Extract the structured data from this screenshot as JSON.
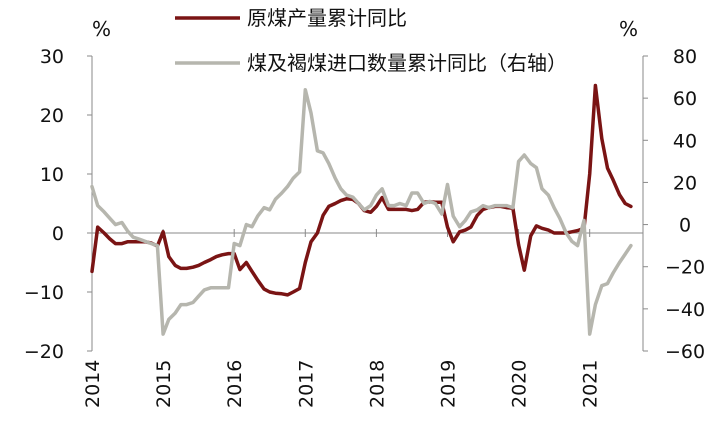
{
  "chart_data": {
    "type": "line",
    "x_ticks": [
      "2014",
      "2015",
      "2016",
      "2017",
      "2018",
      "2019",
      "2020",
      "2021"
    ],
    "y_left": {
      "unit": "%",
      "ylim": [
        -20,
        30
      ],
      "ticks": [
        "30",
        "20",
        "10",
        "0",
        "−10",
        "−20"
      ]
    },
    "y_right": {
      "unit": "%",
      "ylim": [
        -60,
        80
      ],
      "ticks": [
        "80",
        "60",
        "40",
        "20",
        "0",
        "−20",
        "−40",
        "−60"
      ]
    },
    "legend_placement": "top-center",
    "series": [
      {
        "name": "原煤产量累计同比",
        "axis": "left",
        "color": "#7a1414",
        "points": [
          [
            2014.0,
            -6.5
          ],
          [
            2014.08,
            1.0
          ],
          [
            2014.17,
            0.0
          ],
          [
            2014.25,
            -1.0
          ],
          [
            2014.33,
            -1.8
          ],
          [
            2014.42,
            -1.8
          ],
          [
            2014.5,
            -1.5
          ],
          [
            2014.58,
            -1.5
          ],
          [
            2014.67,
            -1.5
          ],
          [
            2014.75,
            -1.5
          ],
          [
            2014.83,
            -1.7
          ],
          [
            2014.92,
            -2.2
          ],
          [
            2015.0,
            0.2
          ],
          [
            2015.08,
            -4.0
          ],
          [
            2015.17,
            -5.5
          ],
          [
            2015.25,
            -6.0
          ],
          [
            2015.33,
            -6.0
          ],
          [
            2015.42,
            -5.8
          ],
          [
            2015.5,
            -5.5
          ],
          [
            2015.58,
            -5.0
          ],
          [
            2015.67,
            -4.5
          ],
          [
            2015.75,
            -4.0
          ],
          [
            2015.83,
            -3.7
          ],
          [
            2015.92,
            -3.5
          ],
          [
            2016.0,
            -3.5
          ],
          [
            2016.08,
            -6.2
          ],
          [
            2016.17,
            -5.0
          ],
          [
            2016.25,
            -6.5
          ],
          [
            2016.33,
            -8.0
          ],
          [
            2016.42,
            -9.5
          ],
          [
            2016.5,
            -10.0
          ],
          [
            2016.58,
            -10.2
          ],
          [
            2016.67,
            -10.3
          ],
          [
            2016.75,
            -10.5
          ],
          [
            2016.83,
            -10.0
          ],
          [
            2016.92,
            -9.4
          ],
          [
            2017.0,
            -5.0
          ],
          [
            2017.08,
            -1.5
          ],
          [
            2017.17,
            0.0
          ],
          [
            2017.25,
            3.0
          ],
          [
            2017.33,
            4.5
          ],
          [
            2017.42,
            5.0
          ],
          [
            2017.5,
            5.5
          ],
          [
            2017.58,
            5.8
          ],
          [
            2017.67,
            5.7
          ],
          [
            2017.75,
            5.0
          ],
          [
            2017.83,
            3.8
          ],
          [
            2017.92,
            3.5
          ],
          [
            2018.0,
            4.5
          ],
          [
            2018.08,
            6.0
          ],
          [
            2018.17,
            4.0
          ],
          [
            2018.25,
            4.0
          ],
          [
            2018.33,
            4.0
          ],
          [
            2018.42,
            4.0
          ],
          [
            2018.5,
            3.8
          ],
          [
            2018.58,
            4.0
          ],
          [
            2018.67,
            5.2
          ],
          [
            2018.75,
            5.3
          ],
          [
            2018.83,
            5.2
          ],
          [
            2018.92,
            5.2
          ],
          [
            2019.0,
            1.0
          ],
          [
            2019.08,
            -1.5
          ],
          [
            2019.17,
            0.2
          ],
          [
            2019.25,
            0.5
          ],
          [
            2019.33,
            1.0
          ],
          [
            2019.42,
            3.0
          ],
          [
            2019.5,
            4.0
          ],
          [
            2019.58,
            4.3
          ],
          [
            2019.67,
            4.5
          ],
          [
            2019.75,
            4.5
          ],
          [
            2019.83,
            4.3
          ],
          [
            2019.92,
            4.2
          ],
          [
            2020.0,
            -2.0
          ],
          [
            2020.08,
            -6.3
          ],
          [
            2020.17,
            -0.5
          ],
          [
            2020.25,
            1.2
          ],
          [
            2020.33,
            0.8
          ],
          [
            2020.42,
            0.5
          ],
          [
            2020.5,
            0.0
          ],
          [
            2020.58,
            0.0
          ],
          [
            2020.67,
            0.0
          ],
          [
            2020.75,
            0.2
          ],
          [
            2020.83,
            0.4
          ],
          [
            2020.92,
            0.8
          ],
          [
            2021.0,
            10.0
          ],
          [
            2021.08,
            25.0
          ],
          [
            2021.17,
            16.0
          ],
          [
            2021.25,
            11.0
          ],
          [
            2021.33,
            9.0
          ],
          [
            2021.42,
            6.5
          ],
          [
            2021.5,
            5.0
          ],
          [
            2021.58,
            4.5
          ]
        ]
      },
      {
        "name": "煤及褐煤进口数量累计同比（右轴）",
        "axis": "right",
        "color": "#b6b6ae",
        "points": [
          [
            2014.0,
            18.0
          ],
          [
            2014.08,
            9.0
          ],
          [
            2014.17,
            6.0
          ],
          [
            2014.25,
            3.0
          ],
          [
            2014.33,
            0.0
          ],
          [
            2014.42,
            1.0
          ],
          [
            2014.5,
            -3.0
          ],
          [
            2014.58,
            -6.0
          ],
          [
            2014.67,
            -7.0
          ],
          [
            2014.75,
            -8.0
          ],
          [
            2014.83,
            -9.0
          ],
          [
            2014.92,
            -10.0
          ],
          [
            2015.0,
            -52.0
          ],
          [
            2015.08,
            -45.0
          ],
          [
            2015.17,
            -42.0
          ],
          [
            2015.25,
            -38.0
          ],
          [
            2015.33,
            -38.0
          ],
          [
            2015.42,
            -37.0
          ],
          [
            2015.5,
            -34.0
          ],
          [
            2015.58,
            -31.0
          ],
          [
            2015.67,
            -30.0
          ],
          [
            2015.75,
            -30.0
          ],
          [
            2015.83,
            -30.0
          ],
          [
            2015.92,
            -30.0
          ],
          [
            2016.0,
            -9.0
          ],
          [
            2016.08,
            -10.0
          ],
          [
            2016.17,
            0.0
          ],
          [
            2016.25,
            -1.0
          ],
          [
            2016.33,
            4.0
          ],
          [
            2016.42,
            8.0
          ],
          [
            2016.5,
            7.0
          ],
          [
            2016.58,
            12.0
          ],
          [
            2016.67,
            15.0
          ],
          [
            2016.75,
            18.0
          ],
          [
            2016.83,
            22.0
          ],
          [
            2016.92,
            25.0
          ],
          [
            2017.0,
            64.0
          ],
          [
            2017.08,
            53.0
          ],
          [
            2017.17,
            35.0
          ],
          [
            2017.25,
            34.0
          ],
          [
            2017.33,
            29.0
          ],
          [
            2017.42,
            22.0
          ],
          [
            2017.5,
            17.0
          ],
          [
            2017.58,
            14.0
          ],
          [
            2017.67,
            13.0
          ],
          [
            2017.75,
            10.0
          ],
          [
            2017.83,
            7.0
          ],
          [
            2017.92,
            9.0
          ],
          [
            2018.0,
            14.0
          ],
          [
            2018.08,
            17.0
          ],
          [
            2018.17,
            9.0
          ],
          [
            2018.25,
            9.0
          ],
          [
            2018.33,
            10.0
          ],
          [
            2018.42,
            9.0
          ],
          [
            2018.5,
            15.0
          ],
          [
            2018.58,
            15.0
          ],
          [
            2018.67,
            10.0
          ],
          [
            2018.75,
            11.0
          ],
          [
            2018.83,
            10.0
          ],
          [
            2018.92,
            5.0
          ],
          [
            2019.0,
            19.0
          ],
          [
            2019.08,
            4.0
          ],
          [
            2019.17,
            -1.0
          ],
          [
            2019.25,
            2.0
          ],
          [
            2019.33,
            6.0
          ],
          [
            2019.42,
            7.0
          ],
          [
            2019.5,
            9.0
          ],
          [
            2019.58,
            8.0
          ],
          [
            2019.67,
            9.0
          ],
          [
            2019.75,
            9.0
          ],
          [
            2019.83,
            9.0
          ],
          [
            2019.92,
            8.0
          ],
          [
            2020.0,
            30.0
          ],
          [
            2020.08,
            33.0
          ],
          [
            2020.17,
            29.0
          ],
          [
            2020.25,
            27.0
          ],
          [
            2020.33,
            17.0
          ],
          [
            2020.42,
            14.0
          ],
          [
            2020.5,
            8.0
          ],
          [
            2020.58,
            3.0
          ],
          [
            2020.67,
            -4.0
          ],
          [
            2020.75,
            -8.0
          ],
          [
            2020.83,
            -10.0
          ],
          [
            2020.92,
            2.0
          ],
          [
            2021.0,
            -52.0
          ],
          [
            2021.08,
            -38.0
          ],
          [
            2021.17,
            -29.0
          ],
          [
            2021.25,
            -28.0
          ],
          [
            2021.33,
            -23.0
          ],
          [
            2021.42,
            -18.0
          ],
          [
            2021.5,
            -14.0
          ],
          [
            2021.58,
            -10.0
          ]
        ]
      }
    ]
  }
}
